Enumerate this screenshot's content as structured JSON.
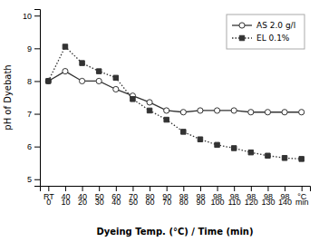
{
  "chart_data": {
    "type": "line",
    "xlabel": "Dyeing Temp. (°C) / Time (min)",
    "ylabel": "pH of Dyebath",
    "categories": [
      [
        "RT",
        "0"
      ],
      [
        "40",
        "10"
      ],
      [
        "40",
        "20"
      ],
      [
        "50",
        "30"
      ],
      [
        "60",
        "40"
      ],
      [
        "70",
        "50"
      ],
      [
        "80",
        "60"
      ],
      [
        "90",
        "70"
      ],
      [
        "98",
        "80"
      ],
      [
        "98",
        "90"
      ],
      [
        "98",
        "100"
      ],
      [
        "98",
        "110"
      ],
      [
        "98",
        "120"
      ],
      [
        "98",
        "130"
      ],
      [
        "98",
        "140"
      ],
      [
        "°C",
        "min"
      ]
    ],
    "series": [
      {
        "name": "AS 2.0 g/l",
        "color": "#333333",
        "marker": "circle-open",
        "line_style": "solid",
        "values": [
          8.0,
          8.3,
          8.0,
          8.0,
          7.75,
          7.55,
          7.35,
          7.1,
          7.05,
          7.1,
          7.1,
          7.1,
          7.05,
          7.05,
          7.05,
          7.05
        ]
      },
      {
        "name": "EL 0.1%",
        "color": "#333333",
        "marker": "square",
        "line_style": "dotted",
        "values": [
          8.0,
          9.05,
          8.55,
          8.3,
          8.1,
          7.45,
          7.1,
          6.82,
          6.45,
          6.22,
          6.05,
          5.95,
          5.82,
          5.72,
          5.65,
          5.62
        ]
      }
    ],
    "ylim": [
      4.8,
      10.2
    ],
    "yticks": [
      5,
      6,
      7,
      8,
      9,
      10
    ],
    "grid": false,
    "legend": "upper right"
  }
}
